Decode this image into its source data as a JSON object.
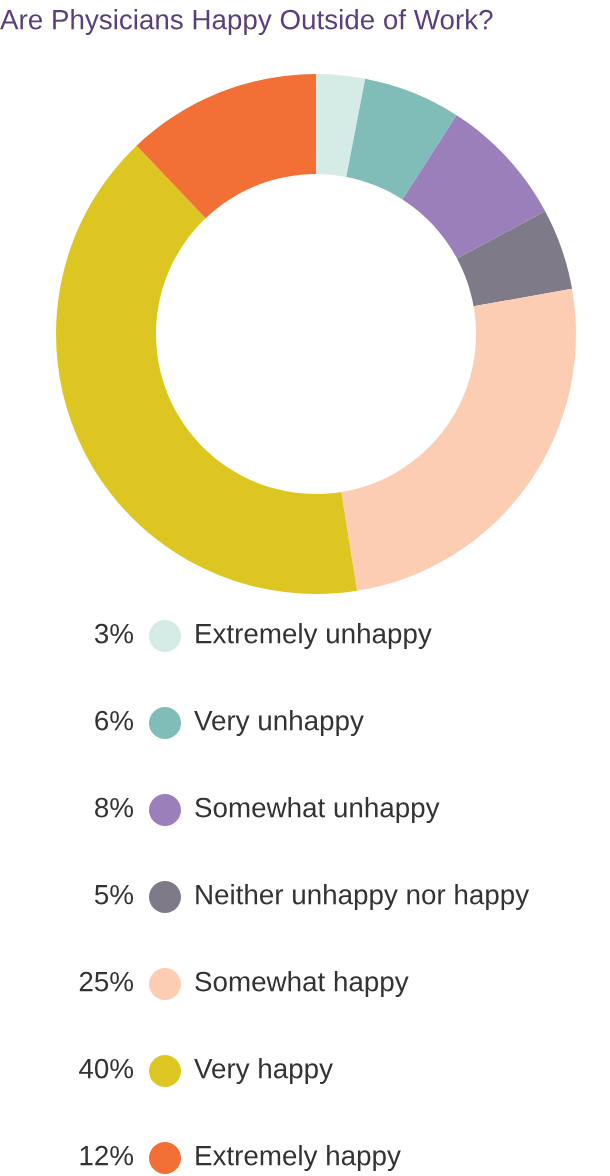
{
  "chart_data": {
    "type": "donut",
    "title": "Are Physicians Happy Outside of Work?",
    "categories": [
      "Extremely unhappy",
      "Very unhappy",
      "Somewhat unhappy",
      "Neither unhappy nor happy",
      "Somewhat happy",
      "Very happy",
      "Extremely happy"
    ],
    "values": [
      3,
      6,
      8,
      5,
      25,
      40,
      12
    ],
    "value_labels": [
      "3%",
      "6%",
      "8%",
      "5%",
      "25%",
      "40%",
      "12%"
    ],
    "colors": [
      "#d4ebe6",
      "#80bcb8",
      "#9a7fba",
      "#7e7a87",
      "#fdcdb3",
      "#dec622",
      "#f26f35"
    ],
    "legend": "bottom"
  }
}
